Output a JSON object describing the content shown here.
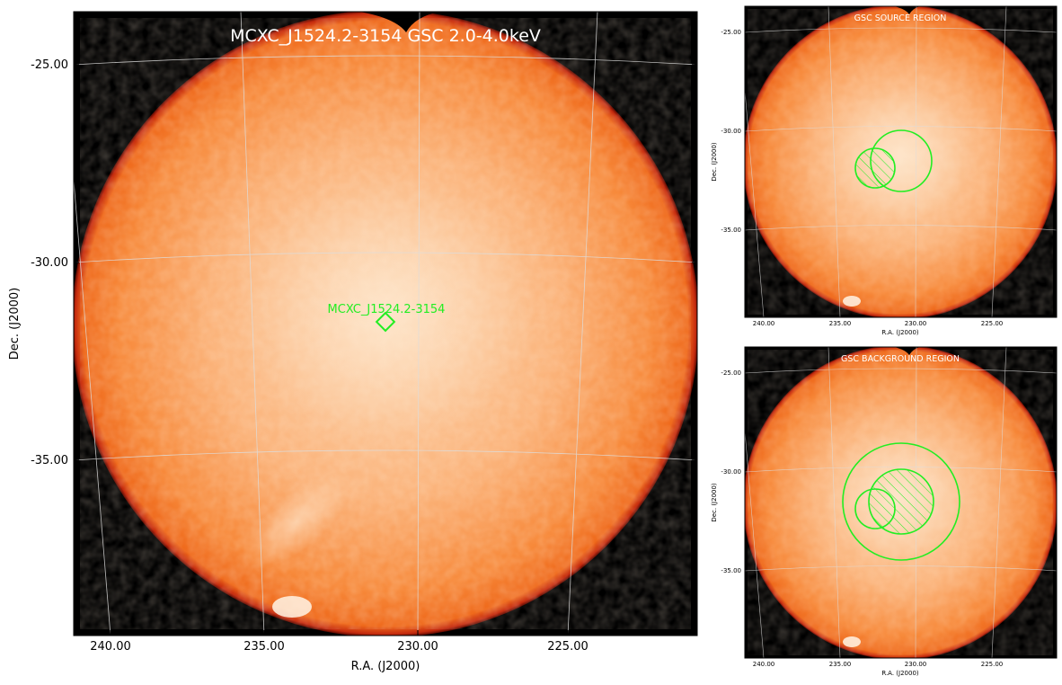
{
  "main": {
    "title": "MCXC_J1524.2-3154 GSC 2.0-4.0keV",
    "source_label": "MCXC_J1524.2-3154",
    "xlabel": "R.A. (J2000)",
    "ylabel": "Dec. (J2000)",
    "xticks": [
      "240.00",
      "235.00",
      "230.00",
      "225.00"
    ],
    "yticks": [
      "-25.00",
      "-30.00",
      "-35.00"
    ]
  },
  "source_panel": {
    "title": "GSC SOURCE REGION",
    "xlabel": "R.A. (J2000)",
    "ylabel": "Dec. (J2000)",
    "xticks": [
      "240.00",
      "235.00",
      "230.00",
      "225.00"
    ],
    "yticks": [
      "-25.00",
      "-30.00",
      "-35.00"
    ]
  },
  "background_panel": {
    "title": "GSC BACKGROUND REGION",
    "xlabel": "R.A. (J2000)",
    "ylabel": "Dec. (J2000)",
    "xticks": [
      "240.00",
      "235.00",
      "230.00",
      "225.00"
    ],
    "yticks": [
      "-25.00",
      "-30.00",
      "-35.00"
    ]
  },
  "colors": {
    "disk_center": "#fcd7b3",
    "disk_mid": "#fa9a45",
    "disk_edge": "#ee6418",
    "rim": "#b81c0a",
    "background": "#000000",
    "region": "#22ee22",
    "grid": "#dddddd"
  }
}
